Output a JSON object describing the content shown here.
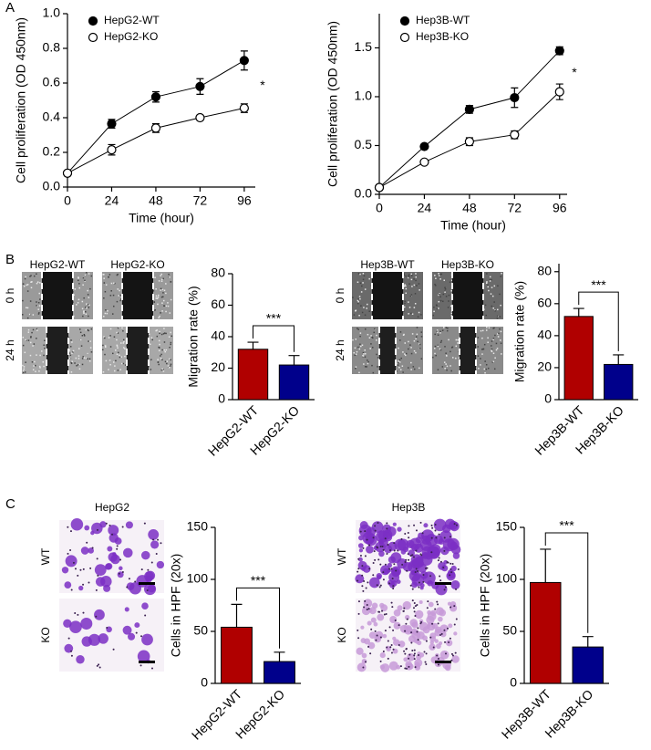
{
  "panels": [
    "A",
    "B",
    "C"
  ],
  "images": {
    "migration": [
      {
        "cols": [
          "HepG2-WT",
          "HepG2-KO"
        ],
        "rows": [
          "0 h",
          "24 h"
        ]
      },
      {
        "cols": [
          "Hep3B-WT",
          "Hep3B-KO"
        ],
        "rows": [
          "0 h",
          "24 h"
        ]
      }
    ],
    "transwell": [
      {
        "title": "HepG2",
        "rows": [
          "WT",
          "KO"
        ]
      },
      {
        "title": "Hep3B",
        "rows": [
          "WT",
          "KO"
        ]
      }
    ]
  },
  "chart_data": [
    {
      "type": "line",
      "x_label": "Time (hour)",
      "y_label": "Cell proliferation (OD 450nm)",
      "x": [
        0,
        24,
        48,
        72,
        96
      ],
      "xlim": [
        0,
        102
      ],
      "xticks": [
        0,
        24,
        48,
        72,
        96
      ],
      "ylim": [
        0,
        1.0
      ],
      "yticks": [
        {
          "value": 0,
          "label": "0.0"
        },
        0.2,
        0.4,
        0.6,
        0.8,
        {
          "value": 1.0,
          "label": "1.0"
        }
      ],
      "annotation": "*",
      "series": [
        {
          "name": "HepG2-WT",
          "color": "#000000",
          "marker_fill": "#000000",
          "values": [
            0.08,
            0.365,
            0.52,
            0.58,
            0.73
          ],
          "errors": [
            0.01,
            0.025,
            0.03,
            0.045,
            0.055
          ]
        },
        {
          "name": "HepG2-KO",
          "color": "#000000",
          "marker_fill": "#ffffff",
          "values": [
            0.08,
            0.215,
            0.34,
            0.4,
            0.455
          ],
          "errors": [
            0.01,
            0.03,
            0.025,
            0.01,
            0.025
          ]
        }
      ]
    },
    {
      "type": "line",
      "x_label": "Time (hour)",
      "y_label": "Cell proliferation (OD 450nm)",
      "x": [
        0,
        24,
        48,
        72,
        96
      ],
      "xlim": [
        0,
        100
      ],
      "xticks": [
        0,
        24,
        48,
        72,
        96
      ],
      "ylim": [
        0,
        1.85
      ],
      "yticks": [
        {
          "value": 0,
          "label": "0.0"
        },
        0.5,
        {
          "value": 1.0,
          "label": "1.0"
        },
        1.5
      ],
      "annotation": "*",
      "series": [
        {
          "name": "Hep3B-WT",
          "color": "#000000",
          "marker_fill": "#000000",
          "values": [
            0.07,
            0.49,
            0.87,
            0.99,
            1.47
          ],
          "errors": [
            0.01,
            0.02,
            0.04,
            0.1,
            0.04
          ]
        },
        {
          "name": "Hep3B-KO",
          "color": "#000000",
          "marker_fill": "#ffffff",
          "values": [
            0.07,
            0.33,
            0.54,
            0.61,
            1.05
          ],
          "errors": [
            0.01,
            0.02,
            0.04,
            0.04,
            0.08
          ]
        }
      ]
    },
    {
      "type": "bar",
      "y_label": "Migration rate (%)",
      "categories": [
        "HepG2-WT",
        "HepG2-KO"
      ],
      "values": [
        32,
        22
      ],
      "errors": [
        4.5,
        6
      ],
      "colors": [
        "#b00000",
        "#00008b"
      ],
      "ylim": [
        0,
        80
      ],
      "yticks": [
        0,
        20,
        40,
        60,
        80
      ],
      "annotation": "***"
    },
    {
      "type": "bar",
      "y_label": "Migration rate (%)",
      "categories": [
        "Hep3B-WT",
        "Hep3B-KO"
      ],
      "values": [
        52,
        22
      ],
      "errors": [
        5,
        6
      ],
      "colors": [
        "#b00000",
        "#00008b"
      ],
      "ylim": [
        0,
        85
      ],
      "yticks": [
        0,
        20,
        40,
        60,
        80
      ],
      "annotation": "***"
    },
    {
      "type": "bar",
      "y_label": "Cells in HPF (20x)",
      "categories": [
        "HepG2-WT",
        "HepG2-KO"
      ],
      "values": [
        54,
        21
      ],
      "errors": [
        22,
        9
      ],
      "colors": [
        "#b00000",
        "#00008b"
      ],
      "ylim": [
        0,
        150
      ],
      "yticks": [
        0,
        50,
        100,
        150
      ],
      "annotation": "***"
    },
    {
      "type": "bar",
      "y_label": "Cells in HPF (20x)",
      "categories": [
        "Hep3B-WT",
        "Hep3B-KO"
      ],
      "values": [
        97,
        35
      ],
      "errors": [
        32,
        10
      ],
      "colors": [
        "#b00000",
        "#00008b"
      ],
      "ylim": [
        0,
        150
      ],
      "yticks": [
        0,
        50,
        100,
        150
      ],
      "annotation": "***"
    }
  ]
}
